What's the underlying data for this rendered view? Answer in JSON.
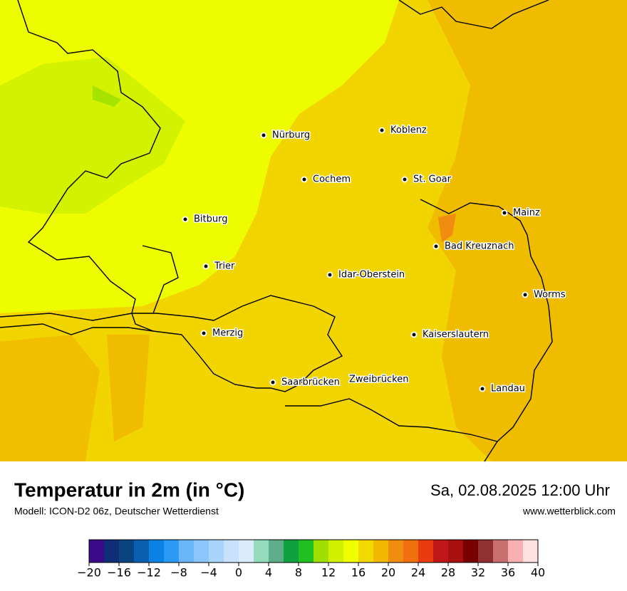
{
  "header": {
    "title": "Temperatur in 2m (in °C)",
    "model": "Modell: ICON-D2 06z, Deutscher Wetterdienst",
    "datetime": "Sa, 02.08.2025 12:00 Uhr",
    "website": "www.wetterblick.com"
  },
  "cities": [
    "Nürburg",
    "Koblenz",
    "Cochem",
    "St. Goar",
    "Bitburg",
    "Mainz",
    "Bad Kreuznach",
    "Trier",
    "Idar-Oberstein",
    "Worms",
    "Merzig",
    "Kaiserslautern",
    "Saarbrücken",
    "Zweibrücken",
    "Landau"
  ],
  "colorbar": {
    "range": [
      -20,
      40
    ],
    "ticks": [
      {
        "value": -20,
        "label": "−20"
      },
      {
        "value": -16,
        "label": "−16"
      },
      {
        "value": -12,
        "label": "−12"
      },
      {
        "value": -8,
        "label": "−8"
      },
      {
        "value": -4,
        "label": "−4"
      },
      0,
      4,
      8,
      12,
      16,
      20,
      24,
      28,
      32,
      36,
      40
    ],
    "colors": [
      "#3a0a8a",
      "#0e2f78",
      "#0a4480",
      "#0a5fb0",
      "#0a82e6",
      "#2a9af5",
      "#6ab6f8",
      "#8ac6fa",
      "#a8d4fa",
      "#c8e2fb",
      "#dcebfb",
      "#94dcbc",
      "#5eae8c",
      "#10a040",
      "#20c020",
      "#a0e000",
      "#d0f000",
      "#f0ff00",
      "#f0d800",
      "#f0b800",
      "#f08c10",
      "#f07010",
      "#e83c10",
      "#c01818",
      "#a81010",
      "#780000",
      "#903030",
      "#c87070",
      "#f8b0b0",
      "#fde0e0"
    ]
  }
}
